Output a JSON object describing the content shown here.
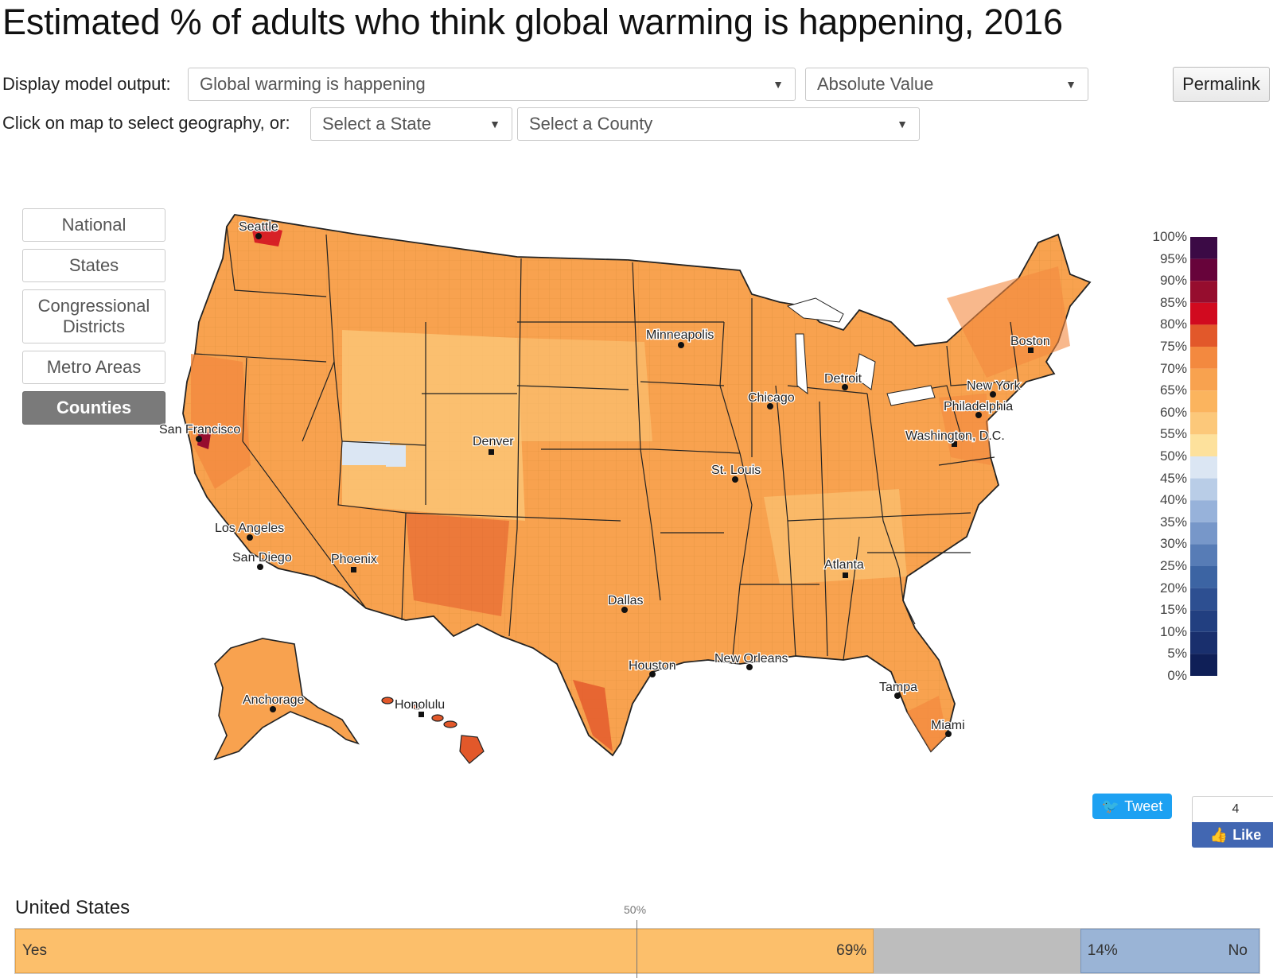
{
  "header": {
    "title": "Estimated % of adults who think global warming is happening, 2016"
  },
  "controls": {
    "display_label": "Display model output:",
    "model_output_value": "Global warming is happening",
    "value_type": "Absolute Value",
    "permalink_label": "Permalink",
    "geo_label": "Click on map to select geography, or:",
    "state_select": "Select a State",
    "county_select": "Select a County"
  },
  "geography_buttons": [
    "National",
    "States",
    "Congressional Districts",
    "Metro Areas",
    "Counties"
  ],
  "active_geography": "Counties",
  "cities": [
    "Seattle",
    "Minneapolis",
    "Boston",
    "Detroit",
    "Chicago",
    "New York",
    "Philadelphia",
    "Washington, D.C.",
    "San Francisco",
    "Denver",
    "St. Louis",
    "Los Angeles",
    "San Diego",
    "Phoenix",
    "Atlanta",
    "Dallas",
    "Houston",
    "New Orleans",
    "Tampa",
    "Miami",
    "Anchorage",
    "Honolulu"
  ],
  "legend": {
    "labels": [
      "100%",
      "95%",
      "90%",
      "85%",
      "80%",
      "75%",
      "70%",
      "65%",
      "60%",
      "55%",
      "50%",
      "45%",
      "40%",
      "35%",
      "30%",
      "25%",
      "20%",
      "15%",
      "10%",
      "5%",
      "0%"
    ],
    "colors": [
      "#3b0a45",
      "#67033a",
      "#960d2e",
      "#d10a1f",
      "#e2582a",
      "#f3893f",
      "#f8a24f",
      "#fbb45e",
      "#fcc87a",
      "#fde19c",
      "#dbe6f3",
      "#b9cde7",
      "#97b2da",
      "#7797c9",
      "#577cb6",
      "#3c64a3",
      "#2d4f91",
      "#223f80",
      "#192f6d",
      "#0f1f57"
    ]
  },
  "social": {
    "tweet_label": "Tweet",
    "like_count": "4",
    "like_label": "Like"
  },
  "summary": {
    "region": "United States",
    "midpoint_label": "50%",
    "yes_label": "Yes",
    "yes_value": "69%",
    "no_value": "14%",
    "no_label": "No",
    "yes_pct": 69,
    "no_pct": 14
  }
}
